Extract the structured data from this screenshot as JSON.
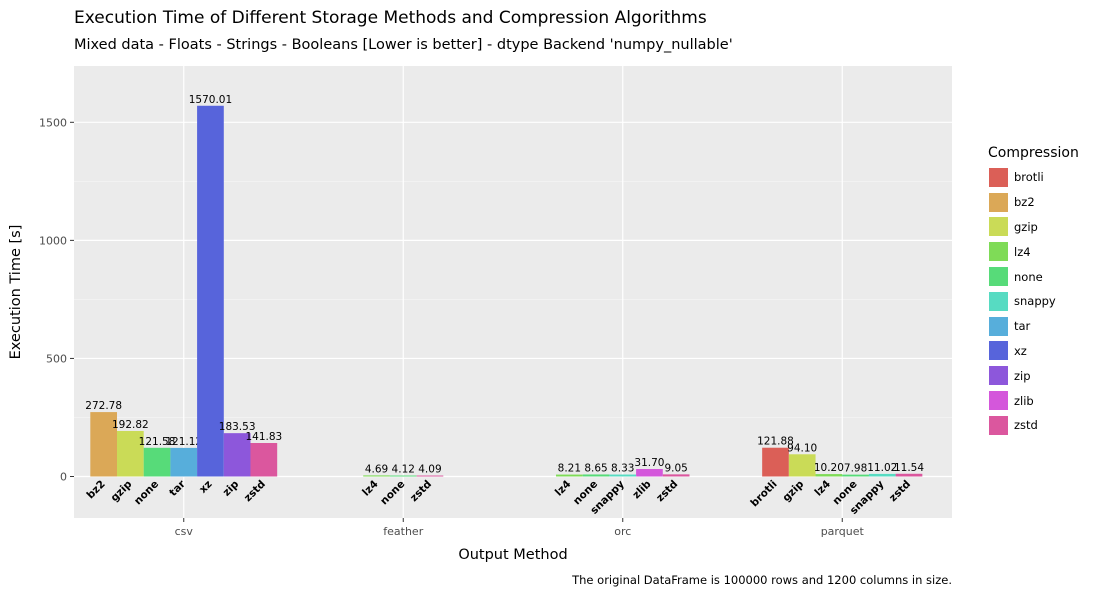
{
  "chart_data": {
    "type": "bar",
    "title": "Execution Time of Different Storage Methods and Compression Algorithms",
    "subtitle": "Mixed data - Floats - Strings - Booleans [Lower is better] - dtype Backend 'numpy_nullable'",
    "xlabel": "Output Method",
    "ylabel": "Execution Time [s]",
    "caption": "The original DataFrame is 100000 rows and 1200 columns in size.",
    "ylim": [
      -175,
      1740
    ],
    "yticks": [
      0,
      500,
      1000,
      1500
    ],
    "grid": true,
    "legend_title": "Compression",
    "legend_position": "right",
    "groups": [
      {
        "name": "csv",
        "bars": [
          {
            "compression": "bz2",
            "value": 272.78,
            "label": "272.78"
          },
          {
            "compression": "gzip",
            "value": 192.82,
            "label": "192.82"
          },
          {
            "compression": "none",
            "value": 121.58,
            "label": "121.58"
          },
          {
            "compression": "tar",
            "value": 121.12,
            "label": "121.12"
          },
          {
            "compression": "xz",
            "value": 1570.01,
            "label": "1570.01"
          },
          {
            "compression": "zip",
            "value": 183.53,
            "label": "183.53"
          },
          {
            "compression": "zstd",
            "value": 141.83,
            "label": "141.83"
          }
        ]
      },
      {
        "name": "feather",
        "bars": [
          {
            "compression": "lz4",
            "value": 4.69,
            "label": "4.69"
          },
          {
            "compression": "none",
            "value": 4.12,
            "label": "4.12"
          },
          {
            "compression": "zstd",
            "value": 4.09,
            "label": "4.09"
          }
        ]
      },
      {
        "name": "orc",
        "bars": [
          {
            "compression": "lz4",
            "value": 8.21,
            "label": "8.21"
          },
          {
            "compression": "none",
            "value": 8.65,
            "label": "8.65"
          },
          {
            "compression": "snappy",
            "value": 8.33,
            "label": "8.33"
          },
          {
            "compression": "zlib",
            "value": 31.7,
            "label": "31.70"
          },
          {
            "compression": "zstd",
            "value": 9.05,
            "label": "9.05"
          }
        ]
      },
      {
        "name": "parquet",
        "bars": [
          {
            "compression": "brotli",
            "value": 121.88,
            "label": "121.88"
          },
          {
            "compression": "gzip",
            "value": 94.1,
            "label": "94.10"
          },
          {
            "compression": "lz4",
            "value": 10.2,
            "label": "10.20"
          },
          {
            "compression": "none",
            "value": 7.98,
            "label": "7.98"
          },
          {
            "compression": "snappy",
            "value": 11.02,
            "label": "11.02"
          },
          {
            "compression": "zstd",
            "value": 11.54,
            "label": "11.54"
          }
        ]
      }
    ],
    "legend": [
      {
        "name": "brotli",
        "color": "#db5f57"
      },
      {
        "name": "bz2",
        "color": "#dba857"
      },
      {
        "name": "gzip",
        "color": "#cadb57"
      },
      {
        "name": "lz4",
        "color": "#7fdb57"
      },
      {
        "name": "none",
        "color": "#57db79"
      },
      {
        "name": "snappy",
        "color": "#57dbc2"
      },
      {
        "name": "tar",
        "color": "#57aedb"
      },
      {
        "name": "xz",
        "color": "#5764db"
      },
      {
        "name": "zip",
        "color": "#8d57db"
      },
      {
        "name": "zlib",
        "color": "#d457db"
      },
      {
        "name": "zstd",
        "color": "#db579e"
      }
    ]
  }
}
